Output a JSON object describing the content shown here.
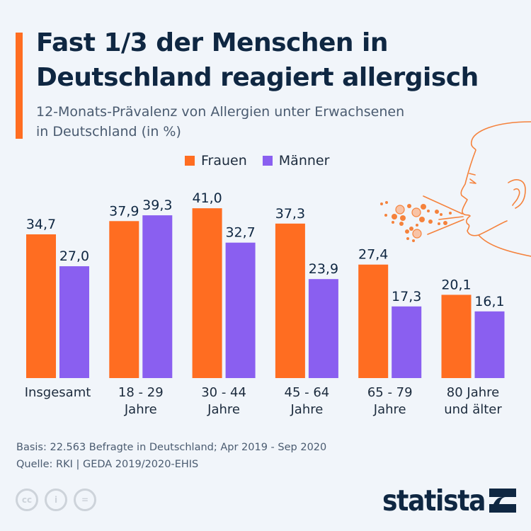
{
  "header": {
    "title_line1": "Fast 1/3 der Menschen in",
    "title_line2": "Deutschland reagiert allergisch",
    "subtitle_line1": "12-Monats-Prävalenz von Allergien unter Erwachsenen",
    "subtitle_line2": "in Deutschland (in %)"
  },
  "colors": {
    "accent": "#ff6d21",
    "frauen": "#ff6d21",
    "maenner": "#8a5ff0",
    "text_dark": "#0f2742",
    "text_muted": "#4a5b70"
  },
  "chart_data": {
    "type": "bar",
    "title": "Fast 1/3 der Menschen in Deutschland reagiert allergisch",
    "subtitle": "12-Monats-Prävalenz von Allergien unter Erwachsenen in Deutschland (in %)",
    "xlabel": "",
    "ylabel": "in %",
    "ylim": [
      0,
      45
    ],
    "grid": false,
    "legend_position": "top-center",
    "categories": [
      [
        "Insgesamt"
      ],
      [
        "18 - 29",
        "Jahre"
      ],
      [
        "30 - 44",
        "Jahre"
      ],
      [
        "45 - 64",
        "Jahre"
      ],
      [
        "65 - 79",
        "Jahre"
      ],
      [
        "80 Jahre",
        "und älter"
      ]
    ],
    "series": [
      {
        "name": "Frauen",
        "values": [
          34.7,
          37.9,
          41.0,
          37.3,
          27.4,
          20.1
        ],
        "labels": [
          "34,7",
          "37,9",
          "41,0",
          "37,3",
          "27,4",
          "20,1"
        ]
      },
      {
        "name": "Männer",
        "values": [
          27.0,
          39.3,
          32.7,
          23.9,
          17.3,
          16.1
        ],
        "labels": [
          "27,0",
          "39,3",
          "32,7",
          "23,9",
          "17,3",
          "16,1"
        ]
      }
    ]
  },
  "footer": {
    "basis": "Basis: 22.563 Befragte in Deutschland; Apr 2019 - Sep 2020",
    "source": "Quelle: RKI | GEDA 2019/2020-EHIS"
  },
  "license_icons": [
    "cc-icon",
    "by-icon",
    "nd-icon"
  ],
  "license_glyphs": [
    "cc",
    "i",
    "="
  ],
  "brand": {
    "logo_text": "statista"
  }
}
